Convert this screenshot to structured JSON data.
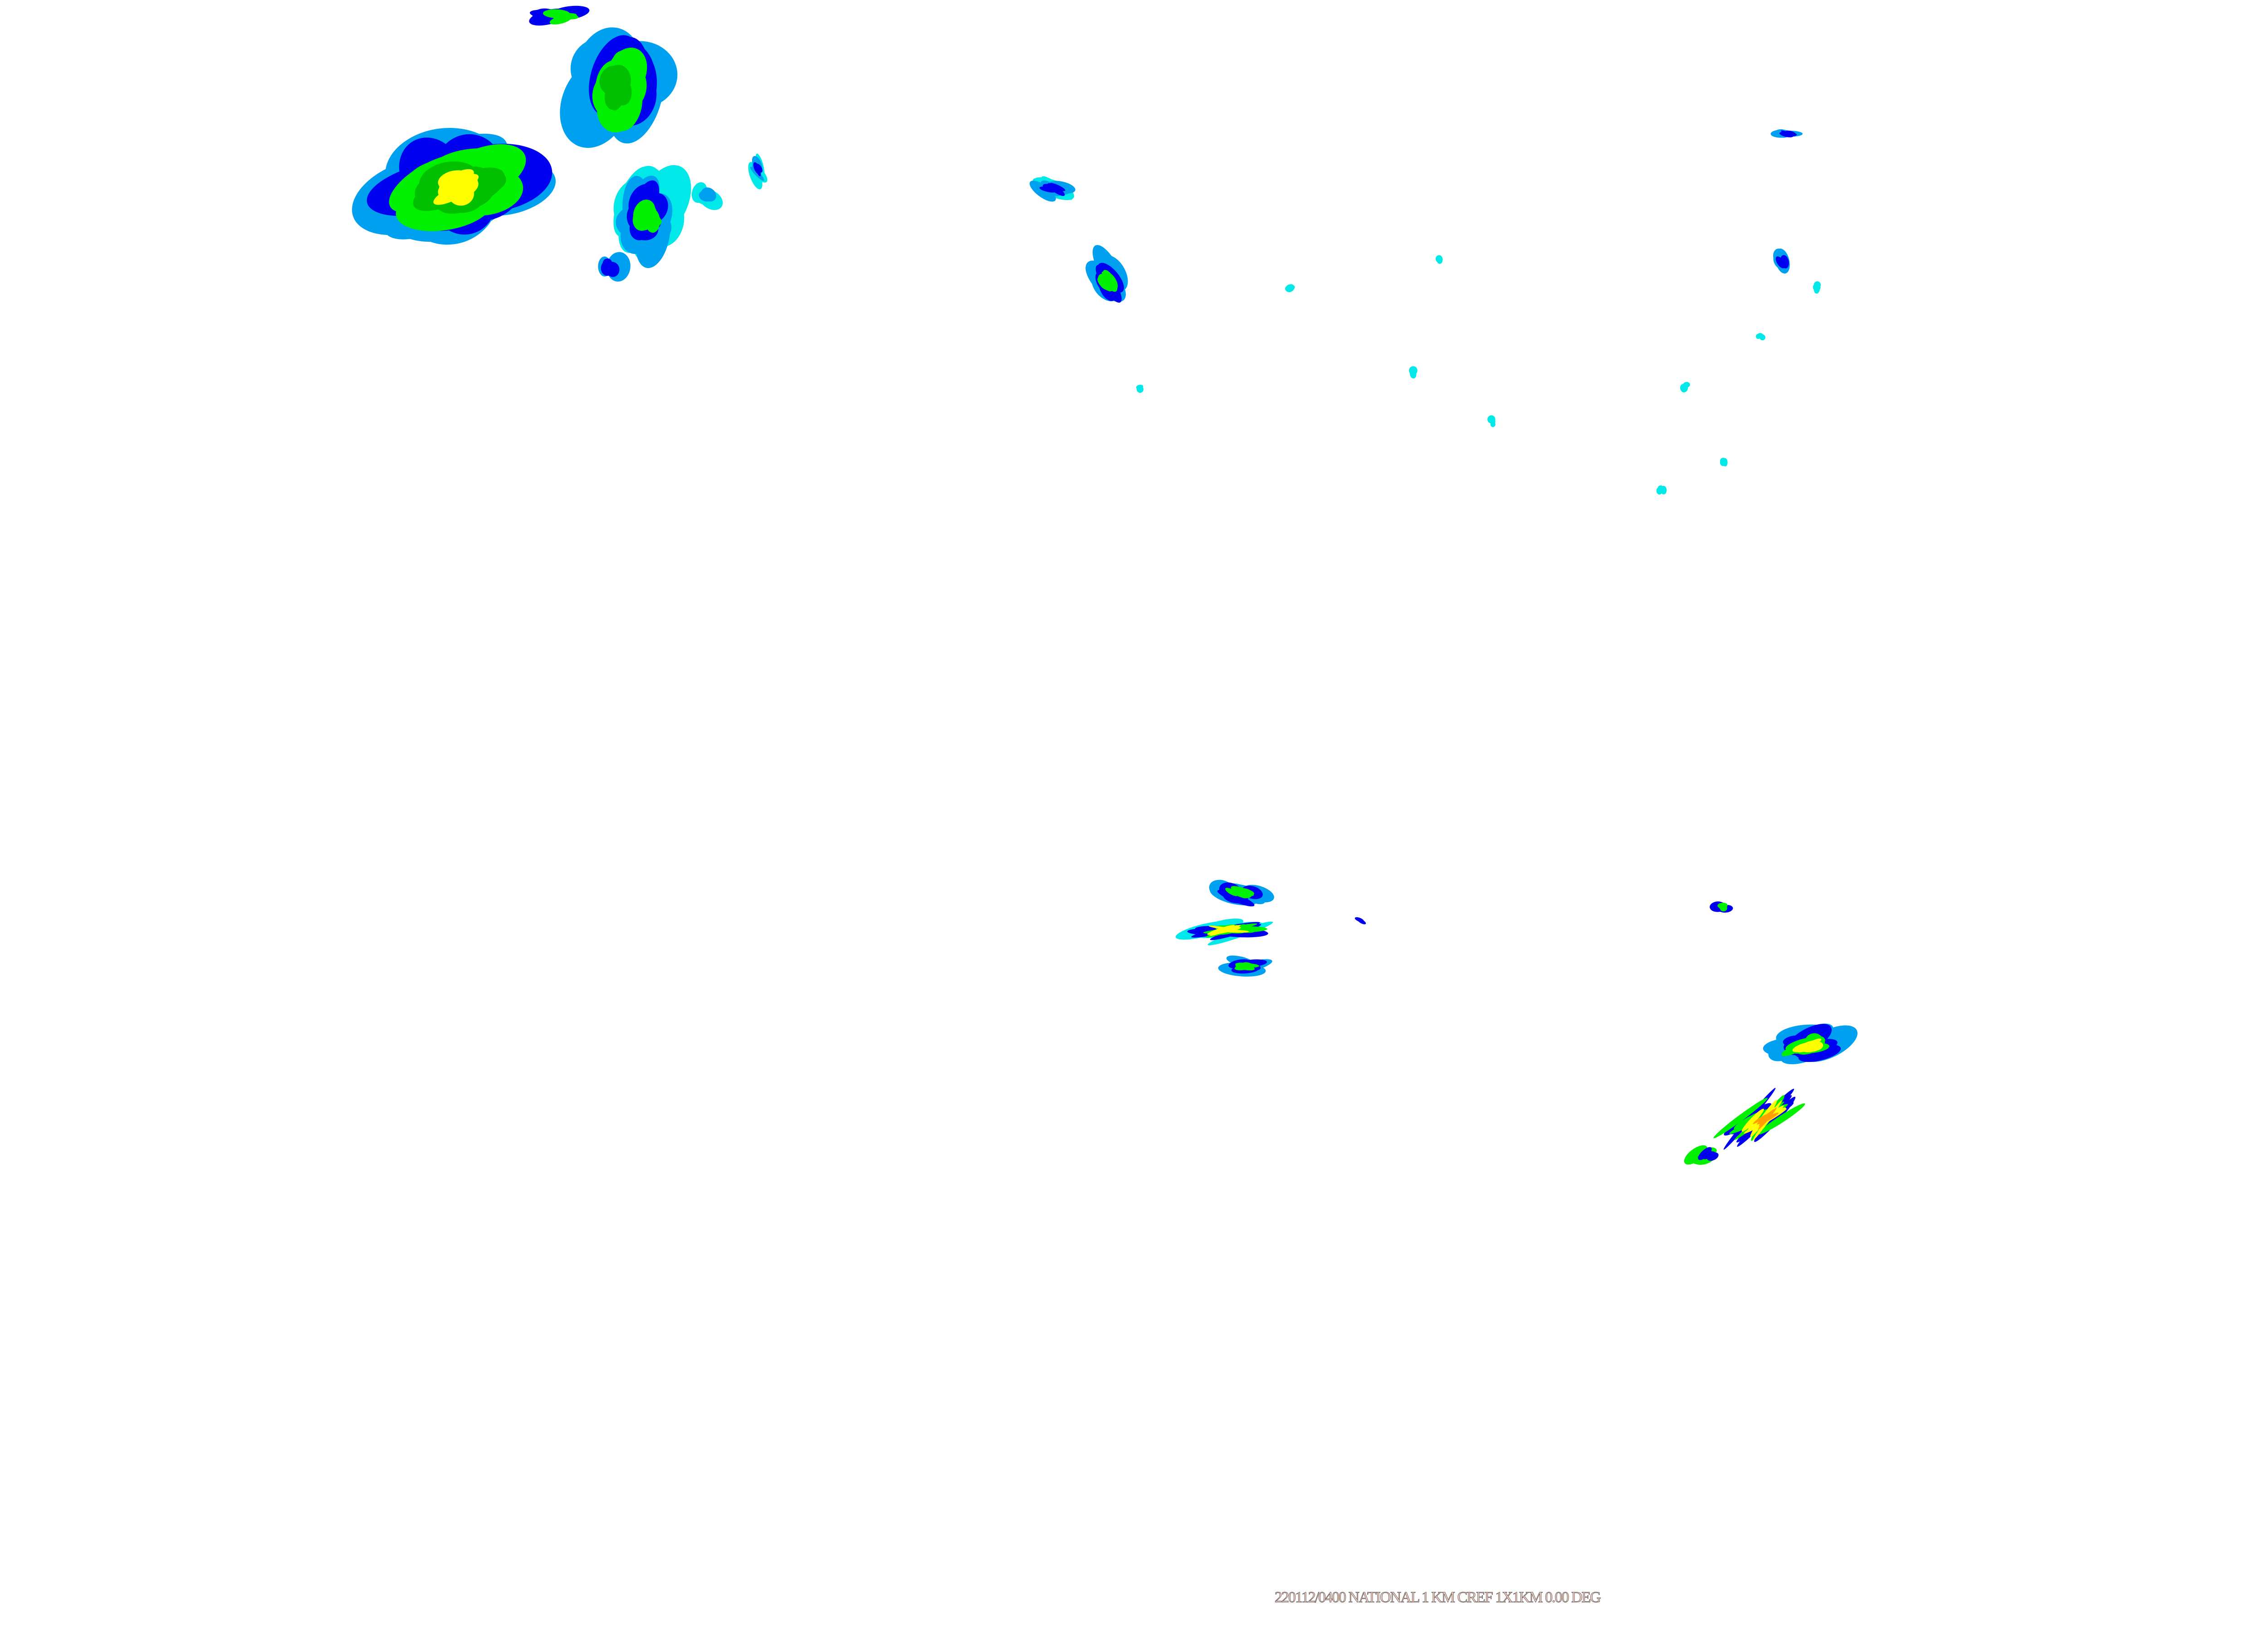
{
  "map": {
    "caption": "220112/0400 NATIONAL 1 KM CREF 1X1KM 0.00 DEG",
    "background": "#ffffff",
    "palette": {
      "cyan": "#00e8e8",
      "light_blue": "#00a0f0",
      "blue": "#0000f0",
      "green": "#00f000",
      "dark_green": "#00c000",
      "yellow": "#ffff00",
      "orange": "#ffa000"
    }
  }
}
